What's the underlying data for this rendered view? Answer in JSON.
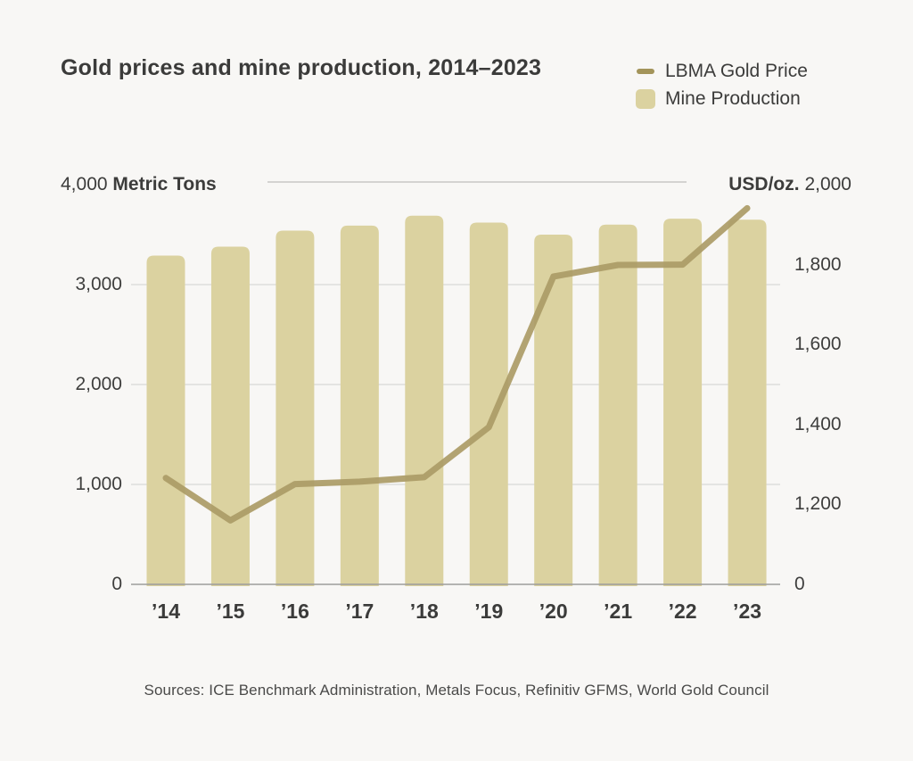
{
  "title": "Gold prices and mine production, 2014–2023",
  "legend": {
    "items": [
      {
        "label": "LBMA Gold Price",
        "swatch": "line-dash",
        "color": "#a3945a"
      },
      {
        "label": "Mine Production",
        "swatch": "square",
        "color": "#dbd2a0"
      }
    ]
  },
  "left_axis": {
    "header_value": "4,000",
    "header_unit": "Metric Tons",
    "tick_labels": [
      "3,000",
      "2,000",
      "1,000",
      "0"
    ],
    "tick_values": [
      3000,
      2000,
      1000,
      0
    ]
  },
  "right_axis": {
    "header_unit": "USD/oz.",
    "header_value": "2,000",
    "tick_labels": [
      "1,800",
      "1,600",
      "1,400",
      "1,200",
      "0"
    ],
    "tick_values": [
      1800,
      1600,
      1400,
      1200,
      0
    ]
  },
  "source_note": "Sources: ICE Benchmark Administration, Metals Focus, Refinitiv GFMS, World Gold Council",
  "colors": {
    "background": "#f8f7f5",
    "bar": "#dbd2a0",
    "line": "#ab9b66",
    "gridline": "#dededc",
    "baseline": "#9d9d9b",
    "top_rule": "#c7c7c5",
    "text": "#3c3c3b"
  },
  "chart_data": {
    "type": "bar",
    "subtype": "bar+line dual axis",
    "title": "Gold prices and mine production, 2014–2023",
    "categories": [
      "’14",
      "’15",
      "’16",
      "’17",
      "’18",
      "’19",
      "’20",
      "’21",
      "’22",
      "’23"
    ],
    "years": [
      2014,
      2015,
      2016,
      2017,
      2018,
      2019,
      2020,
      2021,
      2022,
      2023
    ],
    "series": [
      {
        "name": "Mine Production",
        "type": "bar",
        "axis": "left",
        "unit": "metric tons",
        "color": "#dbd2a0",
        "values": [
          3290,
          3380,
          3540,
          3590,
          3690,
          3620,
          3500,
          3600,
          3660,
          3650
        ]
      },
      {
        "name": "LBMA Gold Price",
        "type": "line",
        "axis": "right",
        "unit": "USD/oz.",
        "color": "#ab9b66",
        "values": [
          1266,
          1160,
          1251,
          1257,
          1268,
          1393,
          1770,
          1799,
          1800,
          1941
        ]
      }
    ],
    "left_axis": {
      "label": "Metric Tons",
      "range": [
        0,
        4000
      ],
      "tick_step": 1000
    },
    "right_axis": {
      "label": "USD/oz.",
      "visible_linear_range": [
        1000,
        2000
      ],
      "tick_step": 200,
      "note": "bottom tick labeled 0 (implied axis break below 1,200)"
    },
    "grid": "horizontal gridlines at left-axis ticks",
    "legend_position": "top-right"
  }
}
